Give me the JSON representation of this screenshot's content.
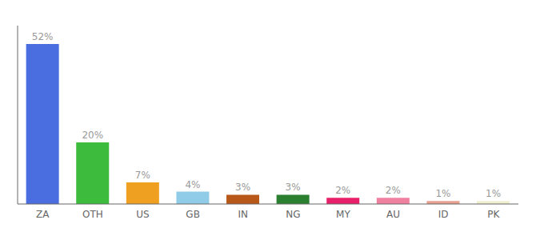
{
  "chart_data": {
    "type": "bar",
    "categories": [
      "ZA",
      "OTH",
      "US",
      "GB",
      "IN",
      "NG",
      "MY",
      "AU",
      "ID",
      "PK"
    ],
    "values": [
      52,
      20,
      7,
      4,
      3,
      3,
      2,
      2,
      1,
      1
    ],
    "value_labels": [
      "52%",
      "20%",
      "7%",
      "4%",
      "3%",
      "3%",
      "2%",
      "2%",
      "1%",
      "1%"
    ],
    "colors": [
      "#4a6ee0",
      "#3dbb3d",
      "#f0a020",
      "#90cce8",
      "#b85818",
      "#2a8030",
      "#e8206a",
      "#f080a0",
      "#e8a090",
      "#f0efd0"
    ],
    "ylim": [
      0,
      58
    ],
    "data_labels": true,
    "tick_labels": "x",
    "grid": false
  }
}
